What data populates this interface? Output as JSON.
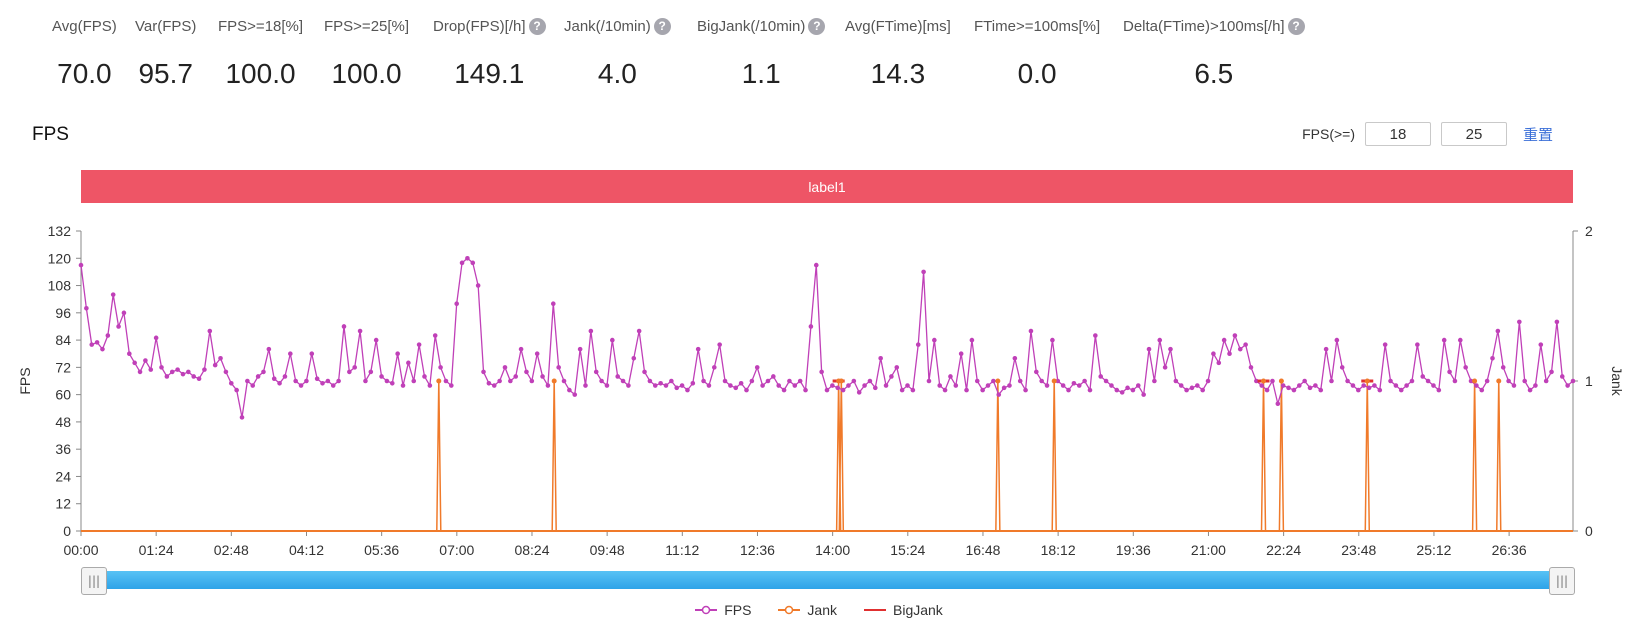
{
  "stats": [
    {
      "label": "Avg(FPS)",
      "value": "70.0",
      "help": false
    },
    {
      "label": "Var(FPS)",
      "value": "95.7",
      "help": false
    },
    {
      "label": "FPS>=18[%]",
      "value": "100.0",
      "help": false
    },
    {
      "label": "FPS>=25[%]",
      "value": "100.0",
      "help": false
    },
    {
      "label": "Drop(FPS)[/h]",
      "value": "149.1",
      "help": true
    },
    {
      "label": "Jank(/10min)",
      "value": "4.0",
      "help": true
    },
    {
      "label": "BigJank(/10min)",
      "value": "1.1",
      "help": true
    },
    {
      "label": "Avg(FTime)[ms]",
      "value": "14.3",
      "help": false
    },
    {
      "label": "FTime>=100ms[%]",
      "value": "0.0",
      "help": false
    },
    {
      "label": "Delta(FTime)>100ms[/h]",
      "value": "6.5",
      "help": true
    }
  ],
  "help_glyph": "?",
  "section_title": "FPS",
  "fps_threshold": {
    "label": "FPS(>=)",
    "value1": "18",
    "value2": "25",
    "reset_label": "重置"
  },
  "band_label": "label1",
  "slider": {
    "handle_glyph": "|||",
    "start": 0,
    "end": 1
  },
  "colors": {
    "fps": "#c040b8",
    "jank": "#f07a2a",
    "bigjank": "#e03030",
    "band": "#ee5566",
    "slider": "#3aaeee"
  },
  "chart_data": {
    "type": "line",
    "ylabel": "FPS",
    "y2label": "Jank",
    "ylim": [
      0,
      132
    ],
    "y2lim": [
      0,
      2
    ],
    "yticks": [
      "0",
      "12",
      "24",
      "36",
      "48",
      "60",
      "72",
      "84",
      "96",
      "108",
      "120",
      "132"
    ],
    "y2ticks": [
      "0",
      "1",
      "2"
    ],
    "xticks": [
      "00:00",
      "01:24",
      "02:48",
      "04:12",
      "05:36",
      "07:00",
      "08:24",
      "09:48",
      "11:12",
      "12:36",
      "14:00",
      "15:24",
      "16:48",
      "18:12",
      "19:36",
      "21:00",
      "22:24",
      "23:48",
      "25:12",
      "26:36"
    ],
    "xlim_seconds": [
      0,
      1668
    ],
    "series": [
      {
        "name": "FPS",
        "axis": "left",
        "points": [
          [
            0,
            117
          ],
          [
            6,
            98
          ],
          [
            12,
            82
          ],
          [
            18,
            83
          ],
          [
            24,
            80
          ],
          [
            30,
            86
          ],
          [
            36,
            104
          ],
          [
            42,
            90
          ],
          [
            48,
            96
          ],
          [
            54,
            78
          ],
          [
            60,
            74
          ],
          [
            66,
            70
          ],
          [
            72,
            75
          ],
          [
            78,
            71
          ],
          [
            84,
            85
          ],
          [
            90,
            72
          ],
          [
            96,
            68
          ],
          [
            102,
            70
          ],
          [
            108,
            71
          ],
          [
            114,
            69
          ],
          [
            120,
            70
          ],
          [
            126,
            68
          ],
          [
            132,
            67
          ],
          [
            138,
            71
          ],
          [
            144,
            88
          ],
          [
            150,
            73
          ],
          [
            156,
            76
          ],
          [
            162,
            70
          ],
          [
            168,
            65
          ],
          [
            174,
            62
          ],
          [
            180,
            50
          ],
          [
            186,
            66
          ],
          [
            192,
            64
          ],
          [
            198,
            68
          ],
          [
            204,
            70
          ],
          [
            210,
            80
          ],
          [
            216,
            67
          ],
          [
            222,
            65
          ],
          [
            228,
            68
          ],
          [
            234,
            78
          ],
          [
            240,
            66
          ],
          [
            246,
            64
          ],
          [
            252,
            66
          ],
          [
            258,
            78
          ],
          [
            264,
            67
          ],
          [
            270,
            65
          ],
          [
            276,
            66
          ],
          [
            282,
            64
          ],
          [
            288,
            66
          ],
          [
            294,
            90
          ],
          [
            300,
            70
          ],
          [
            306,
            72
          ],
          [
            312,
            88
          ],
          [
            318,
            66
          ],
          [
            324,
            70
          ],
          [
            330,
            84
          ],
          [
            336,
            68
          ],
          [
            342,
            66
          ],
          [
            348,
            65
          ],
          [
            354,
            78
          ],
          [
            360,
            64
          ],
          [
            366,
            74
          ],
          [
            372,
            66
          ],
          [
            378,
            82
          ],
          [
            384,
            68
          ],
          [
            390,
            64
          ],
          [
            396,
            86
          ],
          [
            402,
            72
          ],
          [
            408,
            66
          ],
          [
            414,
            64
          ],
          [
            420,
            100
          ],
          [
            426,
            118
          ],
          [
            432,
            120
          ],
          [
            438,
            118
          ],
          [
            444,
            108
          ],
          [
            450,
            70
          ],
          [
            456,
            65
          ],
          [
            462,
            64
          ],
          [
            468,
            66
          ],
          [
            474,
            72
          ],
          [
            480,
            66
          ],
          [
            486,
            68
          ],
          [
            492,
            80
          ],
          [
            498,
            70
          ],
          [
            504,
            66
          ],
          [
            510,
            78
          ],
          [
            516,
            68
          ],
          [
            522,
            64
          ],
          [
            528,
            100
          ],
          [
            534,
            72
          ],
          [
            540,
            66
          ],
          [
            546,
            62
          ],
          [
            552,
            60
          ],
          [
            558,
            80
          ],
          [
            564,
            64
          ],
          [
            570,
            88
          ],
          [
            576,
            70
          ],
          [
            582,
            66
          ],
          [
            588,
            64
          ],
          [
            594,
            84
          ],
          [
            600,
            68
          ],
          [
            606,
            66
          ],
          [
            612,
            64
          ],
          [
            618,
            76
          ],
          [
            624,
            88
          ],
          [
            630,
            70
          ],
          [
            636,
            66
          ],
          [
            642,
            64
          ],
          [
            648,
            65
          ],
          [
            654,
            64
          ],
          [
            660,
            66
          ],
          [
            666,
            63
          ],
          [
            672,
            64
          ],
          [
            678,
            62
          ],
          [
            684,
            65
          ],
          [
            690,
            80
          ],
          [
            696,
            66
          ],
          [
            702,
            64
          ],
          [
            708,
            72
          ],
          [
            714,
            82
          ],
          [
            720,
            66
          ],
          [
            726,
            64
          ],
          [
            732,
            63
          ],
          [
            738,
            65
          ],
          [
            744,
            62
          ],
          [
            750,
            66
          ],
          [
            756,
            72
          ],
          [
            762,
            64
          ],
          [
            768,
            66
          ],
          [
            774,
            68
          ],
          [
            780,
            64
          ],
          [
            786,
            62
          ],
          [
            792,
            66
          ],
          [
            798,
            64
          ],
          [
            804,
            66
          ],
          [
            810,
            62
          ],
          [
            816,
            90
          ],
          [
            822,
            117
          ],
          [
            828,
            70
          ],
          [
            834,
            62
          ],
          [
            840,
            64
          ],
          [
            846,
            63
          ],
          [
            852,
            62
          ],
          [
            858,
            64
          ],
          [
            864,
            66
          ],
          [
            870,
            61
          ],
          [
            876,
            64
          ],
          [
            882,
            66
          ],
          [
            888,
            63
          ],
          [
            894,
            76
          ],
          [
            900,
            64
          ],
          [
            906,
            68
          ],
          [
            912,
            72
          ],
          [
            918,
            62
          ],
          [
            924,
            64
          ],
          [
            930,
            62
          ],
          [
            936,
            82
          ],
          [
            942,
            114
          ],
          [
            948,
            66
          ],
          [
            954,
            84
          ],
          [
            960,
            64
          ],
          [
            966,
            62
          ],
          [
            972,
            68
          ],
          [
            978,
            64
          ],
          [
            984,
            78
          ],
          [
            990,
            62
          ],
          [
            996,
            84
          ],
          [
            1002,
            66
          ],
          [
            1008,
            62
          ],
          [
            1014,
            64
          ],
          [
            1020,
            66
          ],
          [
            1026,
            60
          ],
          [
            1032,
            63
          ],
          [
            1038,
            64
          ],
          [
            1044,
            76
          ],
          [
            1050,
            66
          ],
          [
            1056,
            62
          ],
          [
            1062,
            88
          ],
          [
            1068,
            70
          ],
          [
            1074,
            66
          ],
          [
            1080,
            64
          ],
          [
            1086,
            84
          ],
          [
            1092,
            66
          ],
          [
            1098,
            64
          ],
          [
            1104,
            62
          ],
          [
            1110,
            65
          ],
          [
            1116,
            64
          ],
          [
            1122,
            66
          ],
          [
            1128,
            62
          ],
          [
            1134,
            86
          ],
          [
            1140,
            68
          ],
          [
            1146,
            66
          ],
          [
            1152,
            64
          ],
          [
            1158,
            62
          ],
          [
            1164,
            61
          ],
          [
            1170,
            63
          ],
          [
            1176,
            62
          ],
          [
            1182,
            64
          ],
          [
            1188,
            60
          ],
          [
            1194,
            80
          ],
          [
            1200,
            66
          ],
          [
            1206,
            84
          ],
          [
            1212,
            72
          ],
          [
            1218,
            80
          ],
          [
            1224,
            66
          ],
          [
            1230,
            64
          ],
          [
            1236,
            62
          ],
          [
            1242,
            63
          ],
          [
            1248,
            64
          ],
          [
            1254,
            62
          ],
          [
            1260,
            66
          ],
          [
            1266,
            78
          ],
          [
            1272,
            74
          ],
          [
            1278,
            84
          ],
          [
            1284,
            78
          ],
          [
            1290,
            86
          ],
          [
            1296,
            80
          ],
          [
            1302,
            82
          ],
          [
            1308,
            72
          ],
          [
            1314,
            66
          ],
          [
            1320,
            64
          ],
          [
            1326,
            62
          ],
          [
            1332,
            66
          ],
          [
            1338,
            56
          ],
          [
            1344,
            64
          ],
          [
            1350,
            63
          ],
          [
            1356,
            62
          ],
          [
            1362,
            64
          ],
          [
            1368,
            66
          ],
          [
            1374,
            63
          ],
          [
            1380,
            64
          ],
          [
            1386,
            62
          ],
          [
            1392,
            80
          ],
          [
            1398,
            66
          ],
          [
            1404,
            84
          ],
          [
            1410,
            72
          ],
          [
            1416,
            66
          ],
          [
            1422,
            64
          ],
          [
            1428,
            62
          ],
          [
            1434,
            64
          ],
          [
            1440,
            63
          ],
          [
            1446,
            64
          ],
          [
            1452,
            62
          ],
          [
            1458,
            82
          ],
          [
            1464,
            66
          ],
          [
            1470,
            64
          ],
          [
            1476,
            62
          ],
          [
            1482,
            64
          ],
          [
            1488,
            66
          ],
          [
            1494,
            82
          ],
          [
            1500,
            68
          ],
          [
            1506,
            66
          ],
          [
            1512,
            64
          ],
          [
            1518,
            62
          ],
          [
            1524,
            84
          ],
          [
            1530,
            70
          ],
          [
            1536,
            66
          ],
          [
            1542,
            84
          ],
          [
            1548,
            72
          ],
          [
            1554,
            66
          ],
          [
            1560,
            64
          ],
          [
            1566,
            62
          ],
          [
            1572,
            66
          ],
          [
            1578,
            76
          ],
          [
            1584,
            88
          ],
          [
            1590,
            72
          ],
          [
            1596,
            66
          ],
          [
            1602,
            64
          ],
          [
            1608,
            92
          ],
          [
            1614,
            66
          ],
          [
            1620,
            62
          ],
          [
            1626,
            64
          ],
          [
            1632,
            82
          ],
          [
            1638,
            66
          ],
          [
            1644,
            70
          ],
          [
            1650,
            92
          ],
          [
            1656,
            68
          ],
          [
            1662,
            64
          ],
          [
            1668,
            66
          ]
        ]
      },
      {
        "name": "Jank",
        "axis": "right",
        "spikes_seconds": [
          400,
          529,
          847,
          850,
          1025,
          1088,
          1322,
          1342,
          1438,
          1558,
          1585
        ],
        "spike_value": 1
      },
      {
        "name": "BigJank",
        "axis": "right",
        "spikes_seconds": [
          847,
          1322,
          1438
        ],
        "spike_value": 1
      }
    ],
    "legend": [
      {
        "name": "FPS",
        "icon": "line-circle"
      },
      {
        "name": "Jank",
        "icon": "line-circle"
      },
      {
        "name": "BigJank",
        "icon": "line"
      }
    ],
    "legend_position": "bottom-center"
  }
}
